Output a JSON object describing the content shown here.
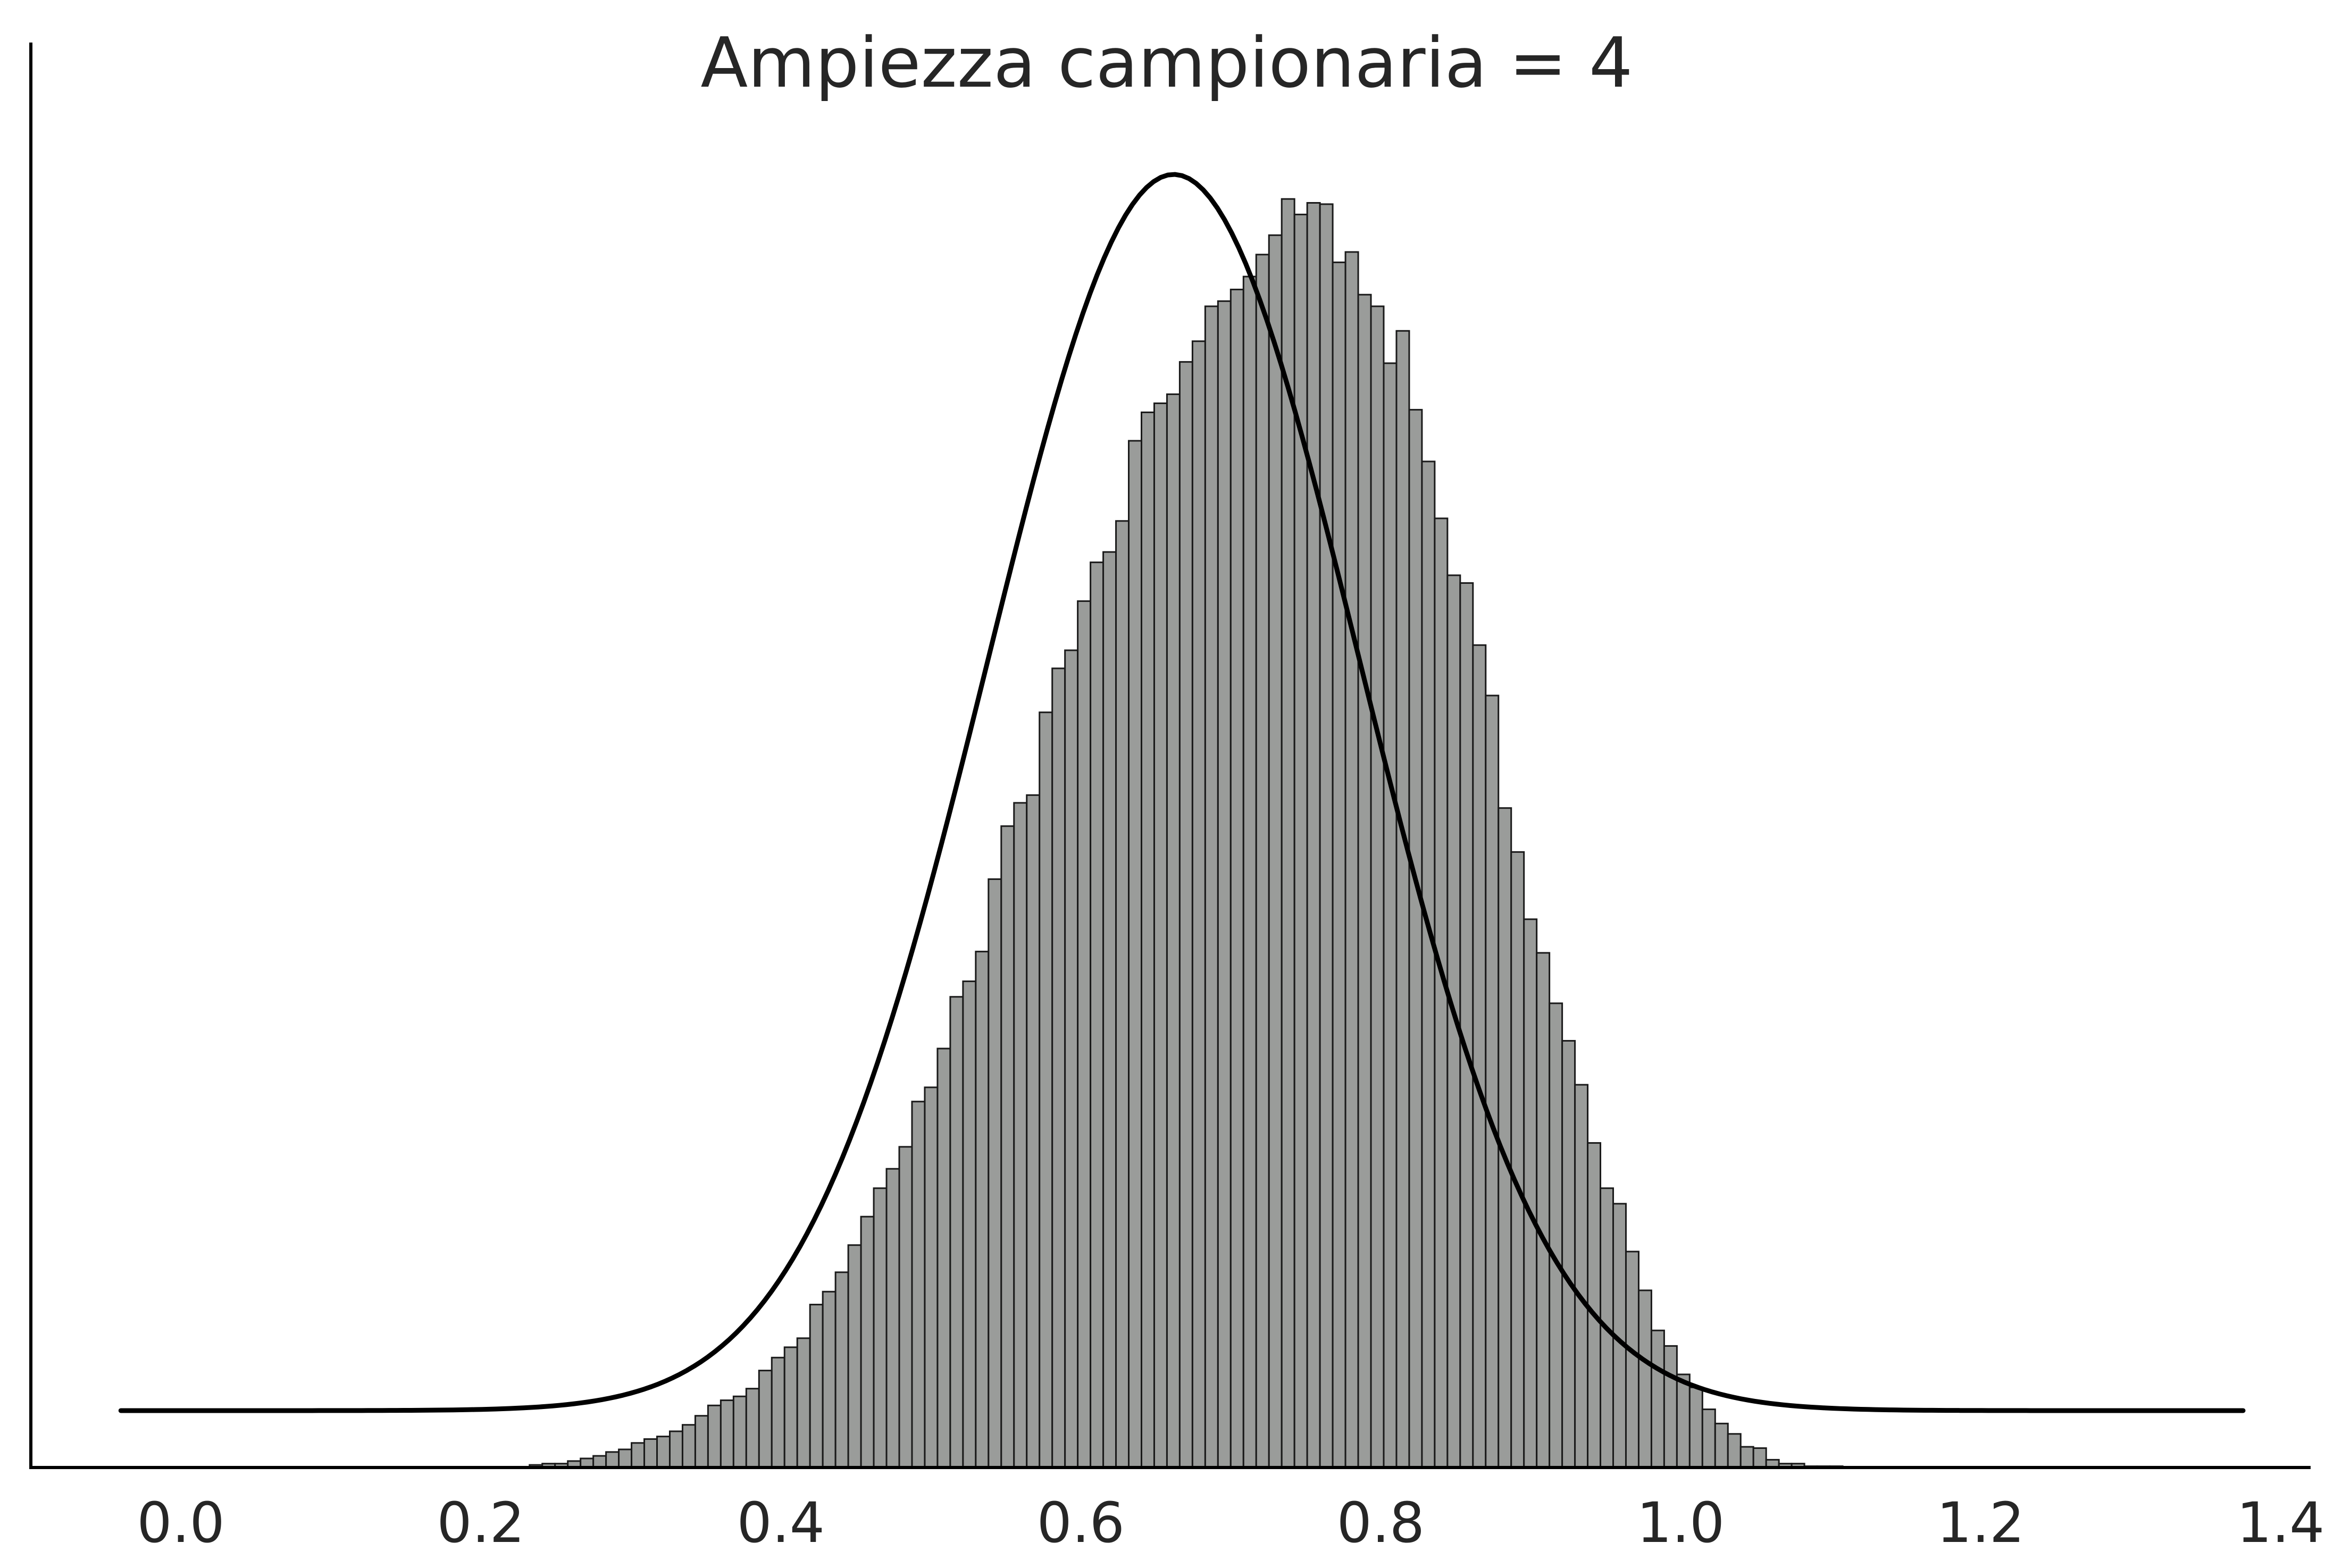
{
  "chart_data": {
    "type": "bar",
    "title": "Ampiezza campionaria = 4",
    "xlabel": "",
    "ylabel": "",
    "xlim": [
      -0.1,
      1.42
    ],
    "ylim": [
      0,
      1.05
    ],
    "x_ticks": [
      0.0,
      0.2,
      0.4,
      0.6,
      0.8,
      1.0,
      1.2,
      1.4
    ],
    "x_tick_labels": [
      "0.0",
      "0.2",
      "0.4",
      "0.6",
      "0.8",
      "1.0",
      "1.2",
      "1.4"
    ],
    "y_axis_ticks_shown": false,
    "grid": false,
    "histogram": {
      "bin_start": 0.2325,
      "bin_width": 0.0085,
      "values": [
        0.002,
        0.003,
        0.003,
        0.005,
        0.007,
        0.009,
        0.012,
        0.014,
        0.019,
        0.022,
        0.024,
        0.028,
        0.033,
        0.04,
        0.048,
        0.052,
        0.055,
        0.061,
        0.075,
        0.085,
        0.093,
        0.1,
        0.126,
        0.136,
        0.151,
        0.172,
        0.194,
        0.216,
        0.231,
        0.248,
        0.283,
        0.294,
        0.324,
        0.364,
        0.376,
        0.399,
        0.455,
        0.496,
        0.514,
        0.52,
        0.584,
        0.618,
        0.632,
        0.67,
        0.7,
        0.708,
        0.732,
        0.794,
        0.816,
        0.823,
        0.83,
        0.855,
        0.871,
        0.898,
        0.902,
        0.911,
        0.921,
        0.938,
        0.953,
        0.981,
        0.969,
        0.978,
        0.977,
        0.932,
        0.94,
        0.907,
        0.898,
        0.854,
        0.879,
        0.818,
        0.778,
        0.734,
        0.69,
        0.684,
        0.636,
        0.597,
        0.51,
        0.476,
        0.424,
        0.398,
        0.359,
        0.33,
        0.296,
        0.251,
        0.216,
        0.204,
        0.167,
        0.137,
        0.106,
        0.094,
        0.072,
        0.062,
        0.045,
        0.034,
        0.026,
        0.016,
        0.015,
        0.006,
        0.003,
        0.003,
        0.001,
        0.001,
        0.001
      ]
    },
    "normal_curve": {
      "mean": 0.662,
      "sd": 0.124,
      "baseline": 0.044,
      "peak": 1.0,
      "x_range": [
        -0.04,
        1.375
      ]
    }
  }
}
